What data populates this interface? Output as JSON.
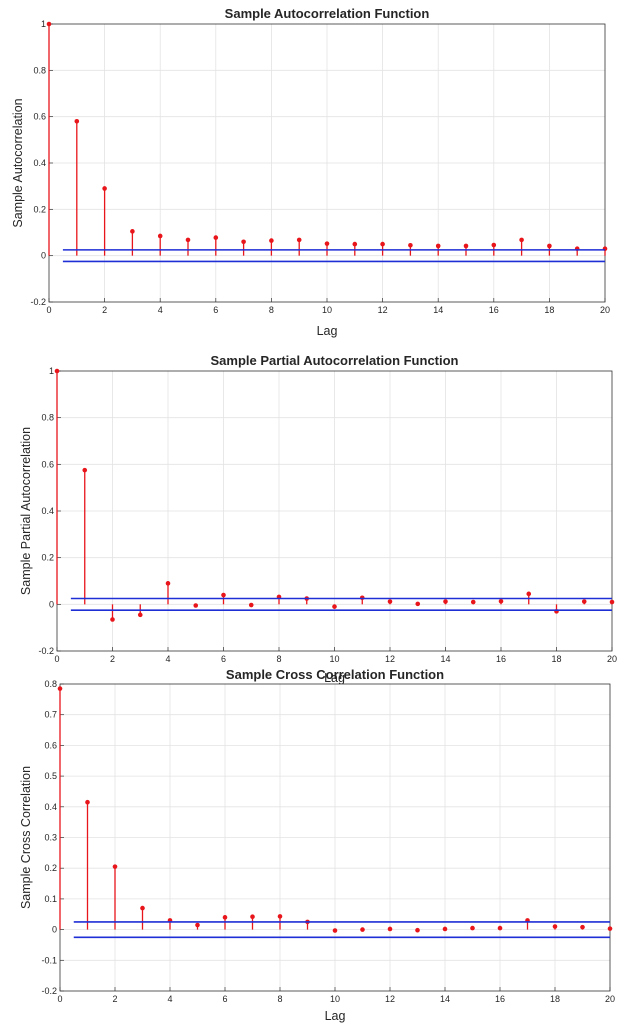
{
  "chart_data": [
    {
      "type": "stem",
      "title": "Sample Autocorrelation Function",
      "xlabel": "Lag",
      "ylabel": "Sample Autocorrelation",
      "xlim": [
        0,
        20
      ],
      "ylim": [
        -0.2,
        1
      ],
      "xticks": [
        0,
        2,
        4,
        6,
        8,
        10,
        12,
        14,
        16,
        18,
        20
      ],
      "yticks": [
        -0.2,
        0,
        0.2,
        0.4,
        0.6,
        0.8,
        1
      ],
      "ytick_labels": [
        "-0.2",
        "0",
        "0.2",
        "0.4",
        "0.6",
        "0.8",
        "1"
      ],
      "grid": true,
      "x": [
        0,
        1,
        2,
        3,
        4,
        5,
        6,
        7,
        8,
        9,
        10,
        11,
        12,
        13,
        14,
        15,
        16,
        17,
        18,
        19,
        20
      ],
      "values": [
        1,
        0.58,
        0.29,
        0.105,
        0.085,
        0.068,
        0.078,
        0.06,
        0.065,
        0.068,
        0.052,
        0.05,
        0.05,
        0.045,
        0.042,
        0.042,
        0.046,
        0.068,
        0.042,
        0.03,
        0.03
      ],
      "confidence_bounds": [
        0.025,
        -0.025
      ],
      "colors": {
        "stem": "#e8151b",
        "bound": "#1f2fd6"
      }
    },
    {
      "type": "stem",
      "title": "Sample Partial Autocorrelation Function",
      "xlabel": "Lag",
      "ylabel": "Sample Partial Autocorrelation",
      "xlim": [
        0,
        20
      ],
      "ylim": [
        -0.2,
        1
      ],
      "xticks": [
        0,
        2,
        4,
        6,
        8,
        10,
        12,
        14,
        16,
        18,
        20
      ],
      "yticks": [
        -0.2,
        0,
        0.2,
        0.4,
        0.6,
        0.8,
        1
      ],
      "ytick_labels": [
        "-0.2",
        "0",
        "0.2",
        "0.4",
        "0.6",
        "0.8",
        "1"
      ],
      "grid": true,
      "x": [
        0,
        1,
        2,
        3,
        4,
        5,
        6,
        7,
        8,
        9,
        10,
        11,
        12,
        13,
        14,
        15,
        16,
        17,
        18,
        19,
        20
      ],
      "values": [
        1,
        0.575,
        -0.065,
        -0.045,
        0.09,
        -0.005,
        0.04,
        -0.003,
        0.032,
        0.025,
        -0.01,
        0.028,
        0.012,
        0.002,
        0.012,
        0.01,
        0.013,
        0.045,
        -0.03,
        0.012,
        0.01
      ],
      "confidence_bounds": [
        0.025,
        -0.025
      ],
      "colors": {
        "stem": "#e8151b",
        "bound": "#1f2fd6"
      }
    },
    {
      "type": "stem",
      "title": "Sample Cross Correlation Function",
      "xlabel": "Lag",
      "ylabel": "Sample Cross Correlation",
      "xlim": [
        0,
        20
      ],
      "ylim": [
        -0.2,
        0.8
      ],
      "xticks": [
        0,
        2,
        4,
        6,
        8,
        10,
        12,
        14,
        16,
        18,
        20
      ],
      "yticks": [
        -0.2,
        -0.1,
        0,
        0.1,
        0.2,
        0.3,
        0.4,
        0.5,
        0.6,
        0.7,
        0.8
      ],
      "ytick_labels": [
        "-0.2",
        "-0.1",
        "0",
        "0.1",
        "0.2",
        "0.3",
        "0.4",
        "0.5",
        "0.6",
        "0.7",
        "0.8"
      ],
      "grid": true,
      "x": [
        0,
        1,
        2,
        3,
        4,
        5,
        6,
        7,
        8,
        9,
        10,
        11,
        12,
        13,
        14,
        15,
        16,
        17,
        18,
        19,
        20
      ],
      "values": [
        0.785,
        0.415,
        0.205,
        0.07,
        0.03,
        0.015,
        0.04,
        0.042,
        0.043,
        0.025,
        -0.003,
        0,
        0.002,
        -0.002,
        0.002,
        0.005,
        0.005,
        0.03,
        0.01,
        0.008,
        0.003
      ],
      "confidence_bounds": [
        0.025,
        -0.025
      ],
      "colors": {
        "stem": "#e8151b",
        "bound": "#1f2fd6"
      }
    }
  ]
}
